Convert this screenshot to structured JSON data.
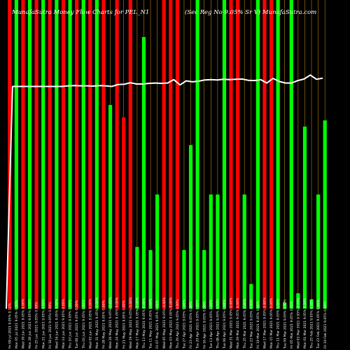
{
  "chart_data": {
    "type": "bar",
    "title_left": "MunafaSutra Money Flow Charts for PEL_N1",
    "title_right": "(Sec Reg No 9.05% Sr V) MunafaSutra.com",
    "colors": {
      "up": "#00ff00",
      "down": "#ff0000",
      "line": "#ffffff",
      "guide": "#b8860b",
      "background": "#000000"
    },
    "ylim": [
      0,
      100
    ],
    "bars": [
      {
        "label": "Fri 09 Jul 2021 9.05% 0.12%",
        "color": "down",
        "value": 100
      },
      {
        "label": "Mon 05 Jul 2021 9.05% 0.00%",
        "color": "up",
        "value": 100
      },
      {
        "label": "Wed 30 Jun 2021 9.05% 0.00%",
        "color": "down",
        "value": 100
      },
      {
        "label": "Mon 28 Jun 2021 9.05% 0.00%",
        "color": "up",
        "value": 100
      },
      {
        "label": "Fri 25 Jun 2021 9.05% 0.00%",
        "color": "down",
        "value": 100
      },
      {
        "label": "Mon 21 Jun 2021 9.05% 0.00%",
        "color": "up",
        "value": 100
      },
      {
        "label": "Fri 18 Jun 2021 9.05% 0.00%",
        "color": "down",
        "value": 100
      },
      {
        "label": "Wed 16 Jun 2021 9.05% 0.00%",
        "color": "up",
        "value": 100
      },
      {
        "label": "Mon 14 Jun 2021 9.05% 0.00%",
        "color": "down",
        "value": 100
      },
      {
        "label": "Thu 10 Jun 2021 9.05% 0.00%",
        "color": "up",
        "value": 100
      },
      {
        "label": "Tue 08 Jun 2021 9.05% 0.00%",
        "color": "down",
        "value": 100
      },
      {
        "label": "Thu 03 Jun 2021 9.05% 0.00%",
        "color": "up",
        "value": 100
      },
      {
        "label": "Wed 02 Jun 2021 9.05% 0.00%",
        "color": "down",
        "value": 100
      },
      {
        "label": "Mon 31 May 2021 9.05% 0.00%",
        "color": "up",
        "value": 100
      },
      {
        "label": "Fri 28 May 2021 9.05% 0.00%",
        "color": "down",
        "value": 100
      },
      {
        "label": "Wed 26 May 2021 9.05% 0.00%",
        "color": "up",
        "value": 66
      },
      {
        "label": "Mon 24 May 2021 9.05% 0.00%",
        "color": "down",
        "value": 100
      },
      {
        "label": "Fri 21 May 2021 9.05% 0.00%",
        "color": "down",
        "value": 62
      },
      {
        "label": "Wed 19 May 2021 9.05% 0.00%",
        "color": "down",
        "value": 100
      },
      {
        "label": "Mon 17 May 2021 9.05% 0.00%",
        "color": "up",
        "value": 20
      },
      {
        "label": "Thu 13 May 2021 9.05% 0.00%",
        "color": "up",
        "value": 88
      },
      {
        "label": "Tue 11 May 2021 9.05% 0.00%",
        "color": "up",
        "value": 19
      },
      {
        "label": "Fri 07 May 2021 9.05% 0.00%",
        "color": "up",
        "value": 37
      },
      {
        "label": "Wed 05 May 2021 9.05% 0.00%",
        "color": "down",
        "value": 100
      },
      {
        "label": "Mon 03 May 2021 9.05% 0.00%",
        "color": "down",
        "value": 100
      },
      {
        "label": "Thu 29 Apr 2021 9.05% 0.00%",
        "color": "down",
        "value": 100
      },
      {
        "label": "Tue 27 Apr 2021 9.05% 0.00%",
        "color": "up",
        "value": 19
      },
      {
        "label": "Fri 23 Apr 2021 9.05% 0.00%",
        "color": "up",
        "value": 53
      },
      {
        "label": "Tue 20 Apr 2021 9.05% 0.00%",
        "color": "up",
        "value": 100
      },
      {
        "label": "Fri 16 Apr 2021 9.05% 0.00%",
        "color": "up",
        "value": 19
      },
      {
        "label": "Tue 13 Apr 2021 9.05% 0.00%",
        "color": "up",
        "value": 37
      },
      {
        "label": "Thu 08 Apr 2021 9.05% 0.00%",
        "color": "up",
        "value": 37
      },
      {
        "label": "Tue 06 Apr 2021 9.05% 0.00%",
        "color": "up",
        "value": 100
      },
      {
        "label": "Wed 31 Mar 2021 9.05% 0.00%",
        "color": "down",
        "value": 100
      },
      {
        "label": "Mon 29 Mar 2021 9.05% 0.00%",
        "color": "down",
        "value": 100
      },
      {
        "label": "Thu 25 Mar 2021 9.05% 0.00%",
        "color": "up",
        "value": 37
      },
      {
        "label": "Tue 23 Mar 2021 9.05% 0.00%",
        "color": "up",
        "value": 8
      },
      {
        "label": "Fri 19 Mar 2021 9.05% 0.00%",
        "color": "up",
        "value": 100
      },
      {
        "label": "Wed 17 Mar 2021 9.05% 0.00%",
        "color": "down",
        "value": 100
      },
      {
        "label": "Mon 15 Mar 2021 9.05% 0.00%",
        "color": "down",
        "value": 100
      },
      {
        "label": "Thu 11 Mar 2021 9.05% 0.00%",
        "color": "up",
        "value": 100
      },
      {
        "label": "Tue 09 Mar 2021 9.05% 0.00%",
        "color": "up",
        "value": 2
      },
      {
        "label": "Fri 05 Mar 2021 9.05% 0.00%",
        "color": "up",
        "value": 100
      },
      {
        "label": "Wed 03 Mar 2021 9.05% 0.00%",
        "color": "up",
        "value": 5
      },
      {
        "label": "Mon 01 Mar 2021 9.05% 0.00%",
        "color": "up",
        "value": 59
      },
      {
        "label": "Thu 25 Feb 2021 9.05% 0.00%",
        "color": "up",
        "value": 3
      },
      {
        "label": "Tue 23 Feb 2021 9.05% 0.00%",
        "color": "up",
        "value": 37
      },
      {
        "label": "Fri 19 Feb 2021 9.05% 0.00%",
        "color": "up",
        "value": 61
      }
    ],
    "line_values": [
      0,
      72,
      72,
      72,
      72,
      72,
      72,
      72,
      72,
      72,
      72.2,
      72.3,
      72.2,
      72.2,
      72.1,
      72.3,
      72.2,
      72,
      72.6,
      72.7,
      73.2,
      72.8,
      72.8,
      73,
      73.1,
      73,
      73.1,
      74.2,
      72.5,
      73.8,
      73.5,
      73.7,
      74.1,
      74.2,
      74.1,
      74.3,
      74.2,
      74.3,
      74.4,
      74,
      73.9,
      74.2,
      73.1,
      74.6,
      73.6,
      73.1,
      73.1,
      73.9,
      74.4,
      75.7,
      74.3,
      74.7
    ]
  }
}
